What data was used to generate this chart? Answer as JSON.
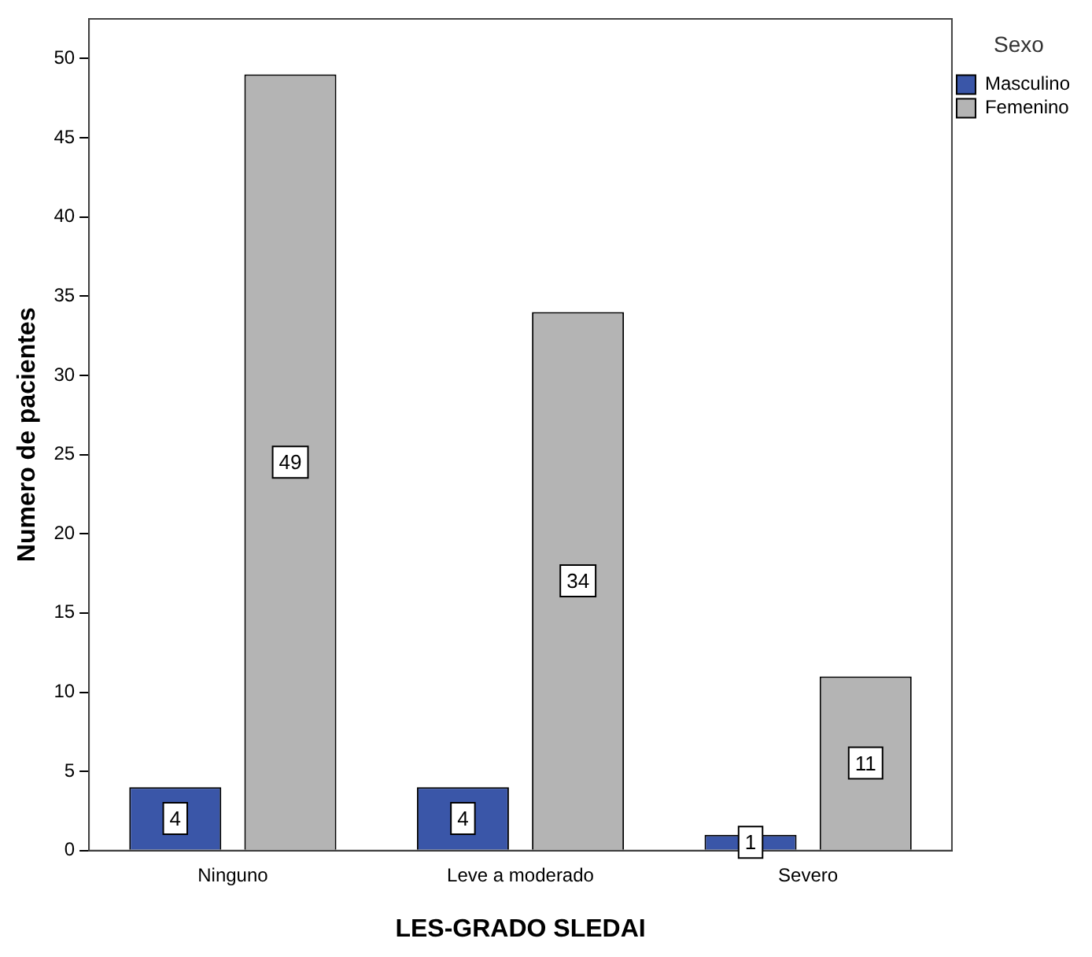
{
  "chart_data": {
    "type": "bar",
    "xlabel": "LES-GRADO SLEDAI",
    "ylabel": "Numero de pacientes",
    "legend_title": "Sexo",
    "categories": [
      "Ninguno",
      "Leve a moderado",
      "Severo"
    ],
    "series": [
      {
        "name": "Masculino",
        "color": "#3a56a8",
        "values": [
          4,
          4,
          1
        ]
      },
      {
        "name": "Femenino",
        "color": "#b4b4b4",
        "values": [
          49,
          34,
          11
        ]
      }
    ],
    "ylim": [
      0,
      52.5
    ],
    "yticks": [
      0,
      5,
      10,
      15,
      20,
      25,
      30,
      35,
      40,
      45,
      50
    ],
    "grid": false,
    "legend": "top right",
    "data_labels": true
  }
}
